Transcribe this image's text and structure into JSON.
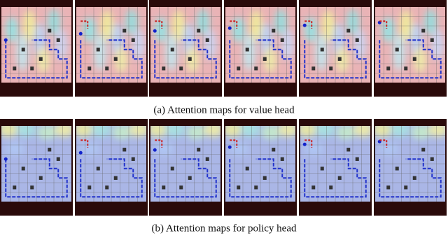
{
  "figure": {
    "panels": [
      {
        "caption": "(a) Attention maps for value head"
      },
      {
        "caption": "(b) Attention maps for policy head"
      }
    ]
  }
}
